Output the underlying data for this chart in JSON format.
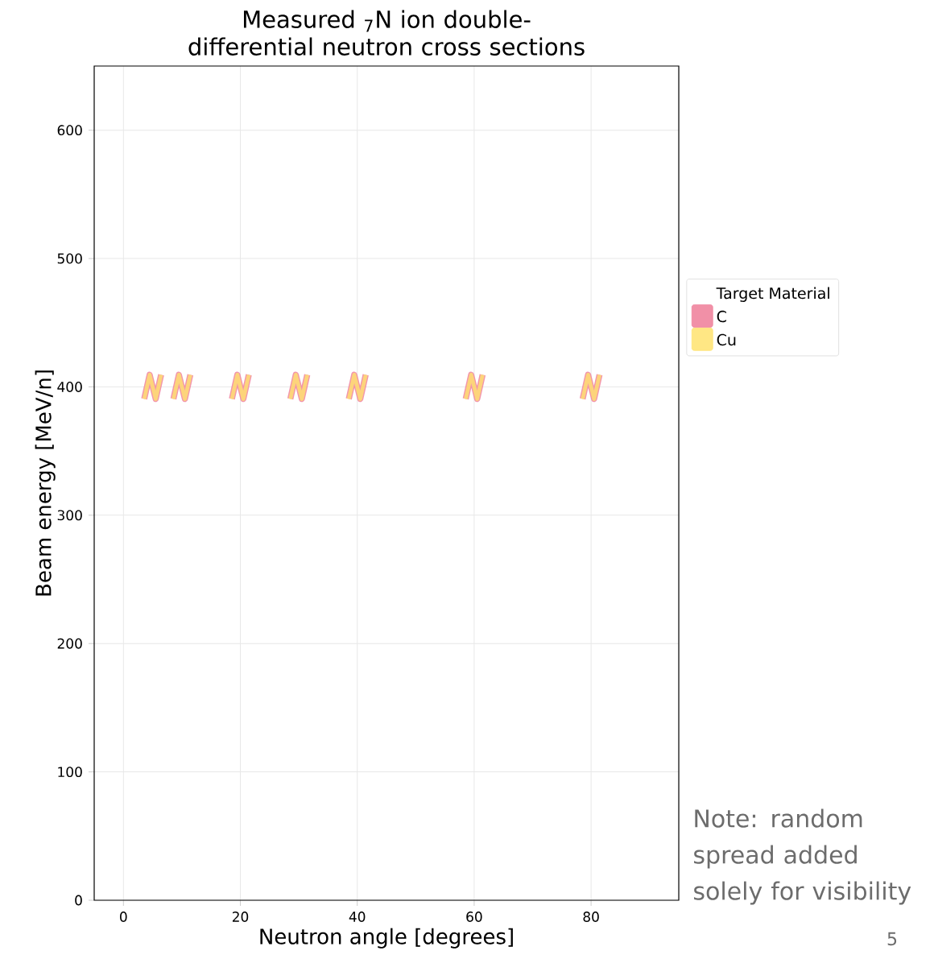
{
  "chart_data": {
    "type": "scatter",
    "title": "Measured $_{7}$N ion double-differential neutron cross sections",
    "xlabel": "Neutron angle [degrees]",
    "ylabel": "Beam energy [MeV/n]",
    "legend_title": "Target Material",
    "x": [
      5,
      10,
      20,
      30,
      40,
      60,
      80
    ],
    "series": [
      {
        "name": "C",
        "color": "#ef7c98",
        "values": [
          400,
          400,
          400,
          400,
          400,
          400,
          400
        ]
      },
      {
        "name": "Cu",
        "color": "#ffe36e",
        "values": [
          400,
          400,
          400,
          400,
          400,
          400,
          400
        ]
      }
    ],
    "xlim": [
      -5,
      95
    ],
    "ylim": [
      0,
      650
    ],
    "xticks": [
      0,
      20,
      40,
      60,
      80
    ],
    "yticks": [
      0,
      100,
      200,
      300,
      400,
      500,
      600
    ],
    "grid": true,
    "legend": "right",
    "annotations": [
      "Note: random spread added solely for visibility",
      "5"
    ]
  }
}
